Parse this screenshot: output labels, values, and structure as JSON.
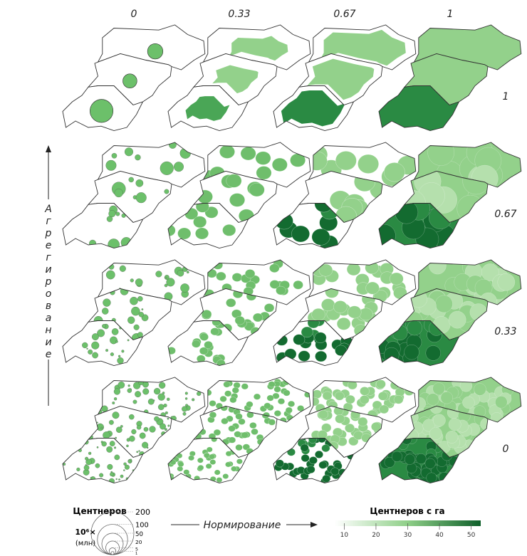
{
  "figure": {
    "column_labels": [
      0,
      0.33,
      0.67,
      1
    ],
    "row_labels": [
      1,
      0.67,
      0.33,
      0
    ],
    "aggregation_label": "Агрегирование",
    "normalization_label": "Нормирование",
    "size_legend": {
      "title": "Центнеров",
      "multiplier": "10⁶×",
      "unit": "(млн)",
      "values": [
        200,
        100,
        50,
        20,
        5,
        1
      ]
    },
    "color_legend": {
      "title": "Центнеров с га",
      "lim": [
        7,
        53
      ],
      "ticks": [
        10,
        20,
        30,
        40,
        50
      ]
    }
  }
}
